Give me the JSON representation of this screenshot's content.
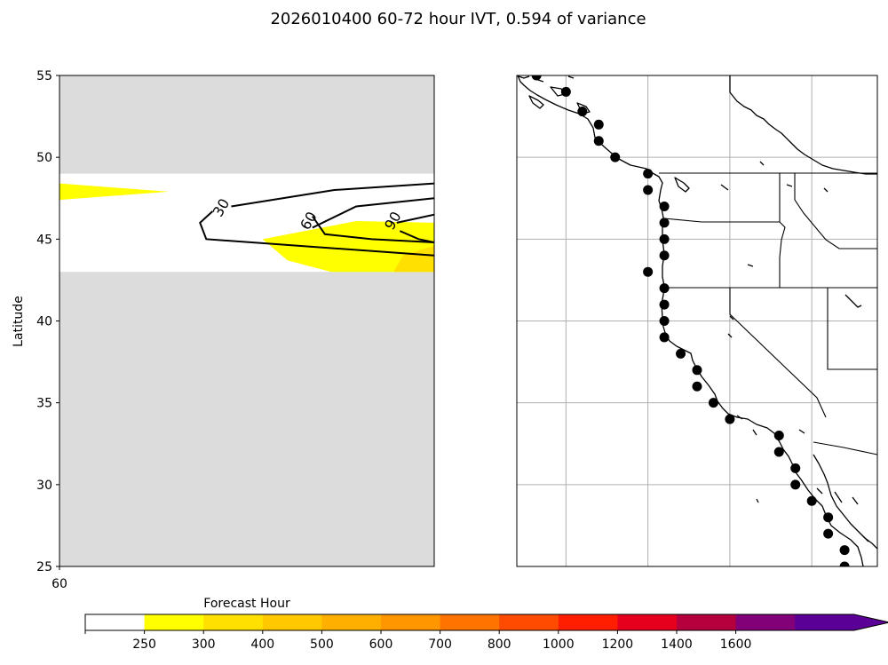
{
  "figure": {
    "title": "2026010400 60-72 hour IVT, 0.594 of variance"
  },
  "chart_data": [
    {
      "type": "heatmap",
      "panel": "left",
      "title": "",
      "xlabel": "",
      "ylabel": "Latitude",
      "xlim": [
        60,
        72
      ],
      "ylim": [
        25,
        55
      ],
      "x_tick_labels": [
        "60"
      ],
      "y_ticks": [
        25,
        30,
        35,
        40,
        45,
        50,
        55
      ],
      "no_data_color": "#dcdcdc",
      "valid_band_latitude": [
        43,
        49
      ],
      "filled_regions": [
        {
          "level": "250-300",
          "color": "#ffff00",
          "points": [
            [
              60.0,
              48.4
            ],
            [
              63.5,
              47.9
            ],
            [
              60.0,
              47.4
            ]
          ]
        },
        {
          "level": "250-300",
          "color": "#ffff00",
          "points": [
            [
              66.5,
              45.0
            ],
            [
              69.5,
              46.1
            ],
            [
              72.0,
              46.0
            ],
            [
              72.0,
              43.0
            ],
            [
              68.7,
              43.0
            ],
            [
              67.3,
              43.7
            ]
          ]
        },
        {
          "level": "300-400",
          "color": "#ffe000",
          "points": [
            [
              71.0,
              44.0
            ],
            [
              72.0,
              44.6
            ],
            [
              72.0,
              43.0
            ],
            [
              70.7,
              43.0
            ]
          ]
        }
      ],
      "contours": [
        {
          "label": "30",
          "label_at": [
            65.2,
            46.9
          ],
          "points": [
            [
              65.5,
              47.0
            ],
            [
              68.8,
              48.0
            ],
            [
              72.0,
              48.4
            ]
          ]
        },
        {
          "label": "",
          "label_at": null,
          "points": [
            [
              64.9,
              46.7
            ],
            [
              64.5,
              46.0
            ],
            [
              64.7,
              45.0
            ],
            [
              72.0,
              44.0
            ]
          ]
        },
        {
          "label": "60",
          "label_at": [
            68.0,
            46.1
          ],
          "points": [
            [
              68.1,
              45.7
            ],
            [
              69.5,
              47.0
            ],
            [
              72.0,
              47.5
            ]
          ]
        },
        {
          "label": "",
          "label_at": null,
          "points": [
            [
              68.1,
              46.4
            ],
            [
              68.5,
              45.3
            ],
            [
              70.0,
              45.0
            ],
            [
              72.0,
              44.8
            ]
          ]
        },
        {
          "label": "90",
          "label_at": [
            70.7,
            46.1
          ],
          "points": [
            [
              70.8,
              46.0
            ],
            [
              72.0,
              46.5
            ]
          ]
        },
        {
          "label": "",
          "label_at": null,
          "points": [
            [
              70.9,
              45.5
            ],
            [
              71.5,
              45.0
            ],
            [
              72.0,
              44.8
            ]
          ]
        }
      ]
    },
    {
      "type": "scatter",
      "panel": "right",
      "title": "",
      "xlabel": "",
      "ylabel": "",
      "xlim": [
        -128,
        -106
      ],
      "ylim": [
        25,
        55
      ],
      "grid": true,
      "grid_lon": [
        -125,
        -120,
        -115,
        -110
      ],
      "grid_lat": [
        30,
        35,
        40,
        45,
        50
      ],
      "points": [
        {
          "lon": -126.8,
          "lat": 55.0
        },
        {
          "lon": -125.0,
          "lat": 54.0
        },
        {
          "lon": -124.0,
          "lat": 52.8
        },
        {
          "lon": -123.0,
          "lat": 52.0
        },
        {
          "lon": -123.0,
          "lat": 51.0
        },
        {
          "lon": -122.0,
          "lat": 50.0
        },
        {
          "lon": -120.0,
          "lat": 49.0
        },
        {
          "lon": -120.0,
          "lat": 48.0
        },
        {
          "lon": -119.0,
          "lat": 47.0
        },
        {
          "lon": -119.0,
          "lat": 46.0
        },
        {
          "lon": -119.0,
          "lat": 45.0
        },
        {
          "lon": -119.0,
          "lat": 44.0
        },
        {
          "lon": -120.0,
          "lat": 43.0
        },
        {
          "lon": -119.0,
          "lat": 42.0
        },
        {
          "lon": -119.0,
          "lat": 41.0
        },
        {
          "lon": -119.0,
          "lat": 40.0
        },
        {
          "lon": -119.0,
          "lat": 39.0
        },
        {
          "lon": -118.0,
          "lat": 38.0
        },
        {
          "lon": -117.0,
          "lat": 37.0
        },
        {
          "lon": -117.0,
          "lat": 36.0
        },
        {
          "lon": -116.0,
          "lat": 35.0
        },
        {
          "lon": -115.0,
          "lat": 34.0
        },
        {
          "lon": -112.0,
          "lat": 33.0
        },
        {
          "lon": -112.0,
          "lat": 32.0
        },
        {
          "lon": -111.0,
          "lat": 31.0
        },
        {
          "lon": -111.0,
          "lat": 30.0
        },
        {
          "lon": -110.0,
          "lat": 29.0
        },
        {
          "lon": -109.0,
          "lat": 28.0
        },
        {
          "lon": -109.0,
          "lat": 27.0
        },
        {
          "lon": -108.0,
          "lat": 26.0
        },
        {
          "lon": -108.0,
          "lat": 25.0
        }
      ]
    }
  ],
  "colorbar": {
    "label": "Forecast Hour",
    "ticks": [
      "250",
      "300",
      "400",
      "500",
      "600",
      "700",
      "800",
      "1000",
      "1200",
      "1400",
      "1600"
    ],
    "colors": [
      "#ffffff",
      "#ffff00",
      "#ffe000",
      "#ffc800",
      "#ffaf00",
      "#ff9600",
      "#ff7300",
      "#ff4b00",
      "#ff1e00",
      "#e6001e",
      "#b4003c",
      "#820078",
      "#5a0096"
    ],
    "extend": "max"
  },
  "map_colors": {
    "coast": "#000000",
    "gridline": "#b0b0b0"
  }
}
